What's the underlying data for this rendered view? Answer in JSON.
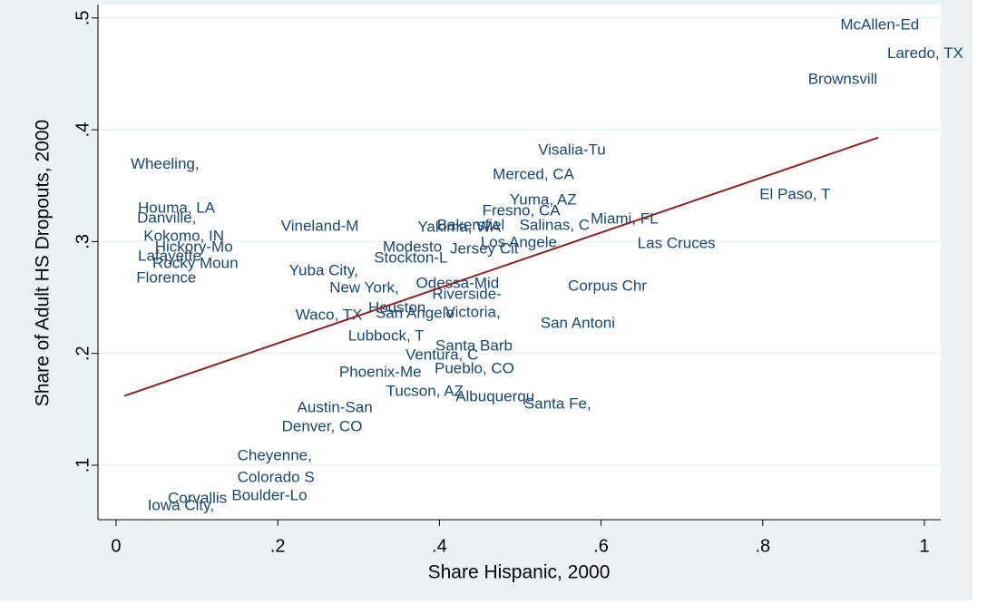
{
  "chart_data": {
    "type": "scatter",
    "xlabel": "Share Hispanic, 2000",
    "ylabel": "Share of Adult HS Dropouts, 2000",
    "xlim": [
      -0.0224,
      1.0202
    ],
    "ylim": [
      0.0513,
      0.512
    ],
    "xticks": [
      0,
      {
        "value": 0.2,
        "label": ".2"
      },
      {
        "value": 0.4,
        "label": ".4"
      },
      {
        "value": 0.6,
        "label": ".6"
      },
      {
        "value": 0.8,
        "label": ".8"
      },
      1
    ],
    "yticks": [
      {
        "value": 0.1,
        "label": ".1"
      },
      {
        "value": 0.2,
        "label": ".2"
      },
      {
        "value": 0.3,
        "label": ".3"
      },
      {
        "value": 0.4,
        "label": ".4"
      },
      {
        "value": 0.5,
        "label": ".5"
      }
    ],
    "grid": true,
    "color": "#1a476f",
    "labels": [
      "McAllen-Ed",
      "Laredo, TX",
      "Brownsvill",
      "Visalia-Tu",
      "Wheeling,",
      "Merced, CA",
      "El Paso, T",
      "Yuma, AZ",
      "Houma, LA",
      "Fresno, CA",
      "Danville,",
      "Miami, FL",
      "Vineland-M",
      "Salinas, C",
      "Bakersfiel",
      "Yakima, WA",
      "Kokomo, IN",
      "Los Angele",
      "Las Cruces",
      "Hickory-Mo",
      "Modesto",
      "Jersey Cit",
      "Lafayette",
      "Stockton-L",
      "Rocky Moun",
      "Yuba City,",
      "Florence",
      "Odessa-Mid",
      "Corpus Chr",
      "New York,",
      "Riverside-",
      "Houston",
      "Victoria,",
      "San Angelo",
      "Waco, TX",
      "San Antoni",
      "Lubbock, T",
      "Santa Barb",
      "Ventura, C",
      "Pueblo, CO",
      "Phoenix-Me",
      "Tucson, AZ",
      "Albuquerqu",
      "Austin-San",
      "Santa Fe,",
      "Denver, CO",
      "Cheyenne,",
      "Colorado S",
      "Boulder-Lo",
      "Corvallis",
      "Iowa City,"
    ],
    "x": [
      0.896,
      0.954,
      0.856,
      0.522,
      0.018,
      0.466,
      0.796,
      0.487,
      0.027,
      0.453,
      0.026,
      0.587,
      0.204,
      0.499,
      0.397,
      0.373,
      0.034,
      0.451,
      0.645,
      0.048,
      0.33,
      0.413,
      0.027,
      0.319,
      0.045,
      0.214,
      0.025,
      0.371,
      0.559,
      0.264,
      0.391,
      0.312,
      0.407,
      0.321,
      0.222,
      0.525,
      0.287,
      0.395,
      0.358,
      0.394,
      0.276,
      0.334,
      0.42,
      0.224,
      0.505,
      0.205,
      0.15,
      0.15,
      0.143,
      0.064,
      0.039
    ],
    "y": [
      0.4935,
      0.4676,
      0.4448,
      0.3815,
      0.369,
      0.3596,
      0.3418,
      0.3369,
      0.3296,
      0.3272,
      0.3207,
      0.3199,
      0.3134,
      0.3142,
      0.3142,
      0.3126,
      0.3045,
      0.2988,
      0.298,
      0.2947,
      0.2947,
      0.293,
      0.2866,
      0.285,
      0.2801,
      0.2736,
      0.2671,
      0.2623,
      0.2598,
      0.2582,
      0.2525,
      0.2404,
      0.2363,
      0.2355,
      0.2339,
      0.2266,
      0.2152,
      0.2063,
      0.1982,
      0.186,
      0.1828,
      0.1657,
      0.1609,
      0.1511,
      0.1544,
      0.1341,
      0.1081,
      0.0886,
      0.0724,
      0.07,
      0.0635
    ],
    "fit": {
      "x": [
        0.01,
        0.943
      ],
      "y": [
        0.162,
        0.393
      ],
      "color": "#8b2323"
    }
  }
}
